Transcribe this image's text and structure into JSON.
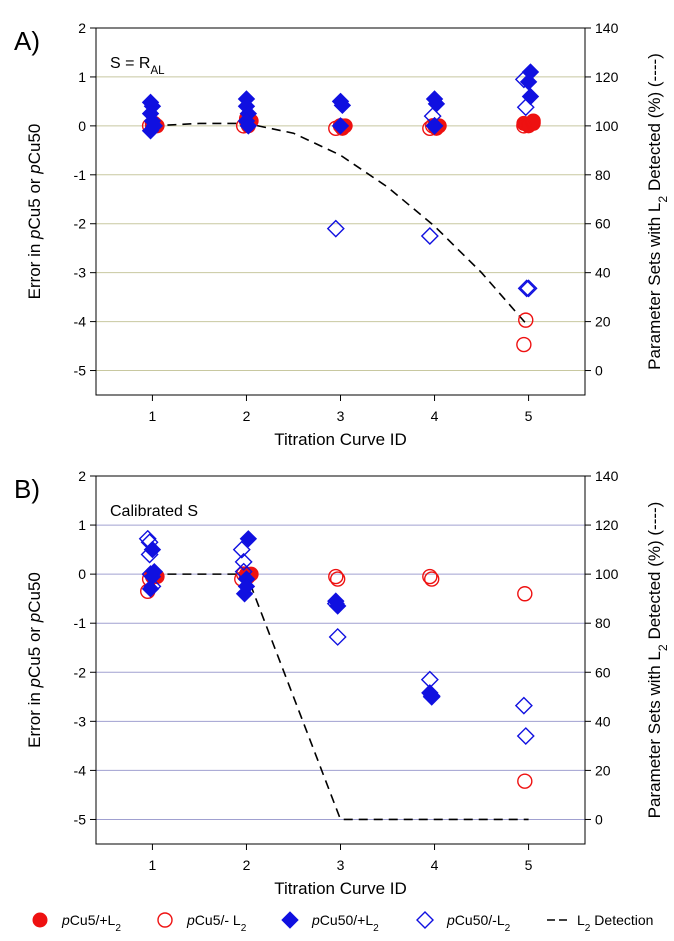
{
  "chart_data": [
    {
      "type": "scatter",
      "panel_label": "A)",
      "annotation": "S = R",
      "annotation_sub": "AL",
      "xlabel": "Titration Curve ID",
      "ylabel_parts": [
        "Error in ",
        "p",
        "Cu5 or ",
        "p",
        "Cu50"
      ],
      "y2label_parts": [
        "Parameter Sets with L",
        "2",
        " Detected (%) (----)"
      ],
      "x_ticks": [
        "1",
        "2",
        "3",
        "4",
        "5"
      ],
      "xlim": [
        0.4,
        5.6
      ],
      "ylim": [
        -5.5,
        2
      ],
      "y_ticks": [
        -5,
        -4,
        -3,
        -2,
        -1,
        0,
        1,
        2
      ],
      "y2lim": [
        -10,
        140
      ],
      "y2_ticks": [
        0,
        20,
        40,
        60,
        80,
        100,
        120,
        140
      ],
      "grid_color": "#c8c8a0",
      "series": [
        {
          "name": "pCu5/+L2",
          "marker": "filled-circle",
          "color": "#ee1111",
          "points": [
            [
              1.0,
              0.0
            ],
            [
              1.02,
              0.05
            ],
            [
              1.05,
              0.0
            ],
            [
              2.0,
              0.15
            ],
            [
              2.02,
              0.0
            ],
            [
              2.05,
              0.1
            ],
            [
              3.0,
              0.0
            ],
            [
              3.02,
              -0.05
            ],
            [
              3.05,
              0.0
            ],
            [
              4.0,
              0.0
            ],
            [
              4.02,
              -0.05
            ],
            [
              4.05,
              0.0
            ],
            [
              4.95,
              0.05
            ],
            [
              5.0,
              0.0
            ],
            [
              5.05,
              0.05
            ],
            [
              5.05,
              0.1
            ]
          ]
        },
        {
          "name": "pCu5/- L2",
          "marker": "open-circle",
          "color": "#ee1111",
          "points": [
            [
              0.97,
              0.0
            ],
            [
              1.0,
              0.05
            ],
            [
              2.0,
              0.1
            ],
            [
              1.97,
              0.0
            ],
            [
              2.95,
              -0.05
            ],
            [
              3.0,
              0.0
            ],
            [
              3.95,
              -0.05
            ],
            [
              3.98,
              0.0
            ],
            [
              4.95,
              0.0
            ],
            [
              4.97,
              -3.97
            ],
            [
              4.95,
              -4.47
            ]
          ]
        },
        {
          "name": "pCu50/+L2",
          "marker": "filled-diamond",
          "color": "#1010e0",
          "points": [
            [
              0.98,
              0.48
            ],
            [
              1.0,
              0.4
            ],
            [
              0.98,
              0.25
            ],
            [
              1.0,
              0.1
            ],
            [
              1.02,
              0.0
            ],
            [
              0.98,
              -0.1
            ],
            [
              2.0,
              0.55
            ],
            [
              2.0,
              0.4
            ],
            [
              2.02,
              0.25
            ],
            [
              2.0,
              0.1
            ],
            [
              2.02,
              0.0
            ],
            [
              3.0,
              0.5
            ],
            [
              3.02,
              0.42
            ],
            [
              3.0,
              0.0
            ],
            [
              4.0,
              0.55
            ],
            [
              4.02,
              0.45
            ],
            [
              4.0,
              0.0
            ],
            [
              5.02,
              1.1
            ],
            [
              5.0,
              0.9
            ],
            [
              5.02,
              0.6
            ]
          ]
        },
        {
          "name": "pCu50/-L2",
          "marker": "open-diamond",
          "color": "#1010e0",
          "points": [
            [
              2.95,
              -2.1
            ],
            [
              3.95,
              -2.25
            ],
            [
              3.98,
              0.2
            ],
            [
              4.0,
              0.0
            ],
            [
              4.95,
              0.95
            ],
            [
              4.97,
              0.38
            ],
            [
              4.98,
              -3.32
            ],
            [
              5.0,
              -3.32
            ]
          ]
        }
      ],
      "detection_line": {
        "name": "L2 Detection",
        "x": [
          1,
          1.5,
          2,
          2.5,
          3,
          3.5,
          4,
          4.5,
          5
        ],
        "y": [
          100,
          101,
          101,
          97,
          88,
          75,
          59,
          40,
          18
        ]
      }
    },
    {
      "type": "scatter",
      "panel_label": "B)",
      "annotation": "Calibrated S",
      "annotation_sub": "",
      "xlabel": "Titration Curve ID",
      "ylabel_parts": [
        "Error in ",
        "p",
        "Cu5 or ",
        "p",
        "Cu50"
      ],
      "y2label_parts": [
        "Parameter Sets with L",
        "2",
        " Detected (%) (----)"
      ],
      "x_ticks": [
        "1",
        "2",
        "3",
        "4",
        "5"
      ],
      "xlim": [
        0.4,
        5.6
      ],
      "ylim": [
        -5.5,
        2
      ],
      "y_ticks": [
        -5,
        -4,
        -3,
        -2,
        -1,
        0,
        1,
        2
      ],
      "y2lim": [
        -10,
        140
      ],
      "y2_ticks": [
        0,
        20,
        40,
        60,
        80,
        100,
        120,
        140
      ],
      "grid_color": "#a0a0d0",
      "series": [
        {
          "name": "pCu5/+L2",
          "marker": "filled-circle",
          "color": "#ee1111",
          "points": [
            [
              1.0,
              -0.05
            ],
            [
              1.02,
              0.0
            ],
            [
              1.05,
              -0.05
            ],
            [
              2.0,
              0.0
            ],
            [
              2.02,
              -0.05
            ],
            [
              2.05,
              0.0
            ]
          ]
        },
        {
          "name": "pCu5/- L2",
          "marker": "open-circle",
          "color": "#ee1111",
          "points": [
            [
              0.95,
              -0.35
            ],
            [
              0.97,
              -0.1
            ],
            [
              1.0,
              0.0
            ],
            [
              1.95,
              -0.1
            ],
            [
              1.97,
              0.0
            ],
            [
              2.0,
              -0.05
            ],
            [
              2.95,
              -0.05
            ],
            [
              2.97,
              -0.1
            ],
            [
              3.95,
              -0.05
            ],
            [
              3.97,
              -0.1
            ],
            [
              4.96,
              -0.4
            ],
            [
              4.96,
              -4.22
            ]
          ]
        },
        {
          "name": "pCu50/+L2",
          "marker": "filled-diamond",
          "color": "#1010e0",
          "points": [
            [
              1.0,
              0.5
            ],
            [
              1.02,
              0.05
            ],
            [
              1.0,
              -0.05
            ],
            [
              0.98,
              -0.3
            ],
            [
              2.02,
              0.72
            ],
            [
              2.0,
              -0.1
            ],
            [
              1.98,
              -0.4
            ],
            [
              2.0,
              -0.25
            ],
            [
              2.95,
              -0.55
            ],
            [
              2.97,
              -0.65
            ],
            [
              3.95,
              -2.42
            ],
            [
              3.97,
              -2.48
            ]
          ]
        },
        {
          "name": "pCu50/-L2",
          "marker": "open-diamond",
          "color": "#1010e0",
          "points": [
            [
              0.95,
              0.72
            ],
            [
              0.97,
              0.65
            ],
            [
              0.97,
              0.4
            ],
            [
              0.98,
              0.0
            ],
            [
              1.0,
              -0.25
            ],
            [
              1.95,
              0.5
            ],
            [
              1.97,
              0.25
            ],
            [
              1.97,
              0.05
            ],
            [
              2.95,
              -0.6
            ],
            [
              2.97,
              -1.28
            ],
            [
              3.95,
              -2.15
            ],
            [
              3.97,
              -2.5
            ],
            [
              4.95,
              -2.68
            ],
            [
              4.97,
              -3.3
            ]
          ]
        }
      ],
      "detection_line": {
        "name": "L2 Detection",
        "x": [
          1,
          2,
          3,
          4,
          5
        ],
        "y": [
          100,
          100,
          0,
          0,
          0
        ]
      }
    }
  ],
  "legend": {
    "items": [
      {
        "symbol": "filled-circle",
        "color": "#ee1111",
        "parts": [
          "p",
          "Cu5/+L",
          "2"
        ]
      },
      {
        "symbol": "open-circle",
        "color": "#ee1111",
        "parts": [
          "p",
          "Cu5/- L",
          "2"
        ]
      },
      {
        "symbol": "filled-diamond",
        "color": "#1010e0",
        "parts": [
          "p",
          "Cu50/+L",
          "2"
        ]
      },
      {
        "symbol": "open-diamond",
        "color": "#1010e0",
        "parts": [
          "p",
          "Cu50/-L",
          "2"
        ]
      },
      {
        "symbol": "dashed-line",
        "color": "#000000",
        "parts": [
          "",
          "L",
          "2",
          " Detection"
        ]
      }
    ]
  }
}
